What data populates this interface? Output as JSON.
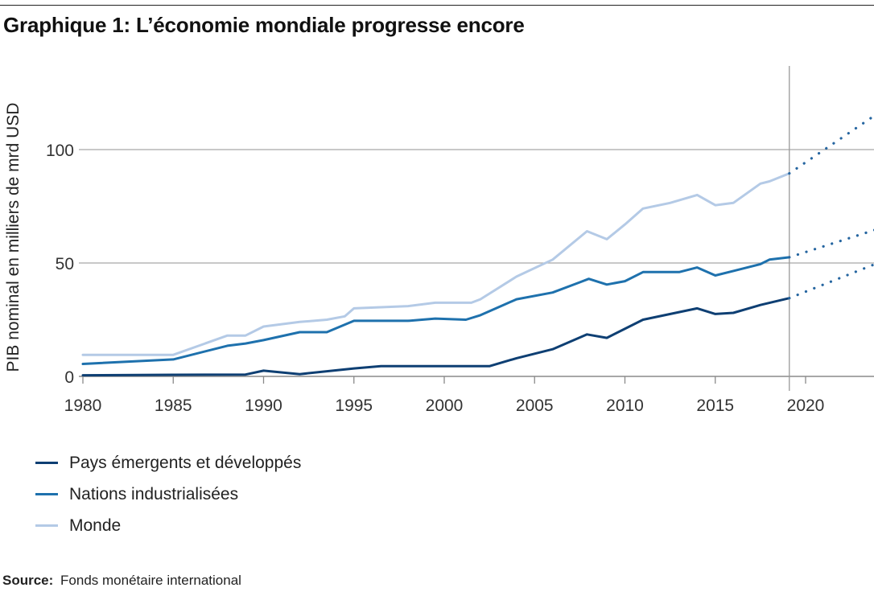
{
  "header": {
    "title": "Graphique 1: L’économie mondiale progresse encore"
  },
  "chart_data": {
    "type": "line",
    "title": "Graphique 1: L’économie mondiale progresse encore",
    "ylabel": "PIB nominal en milliers de mrd USD",
    "xlabel": "",
    "xlim": [
      1980,
      2024
    ],
    "ylim": [
      0,
      120
    ],
    "x_ticks": [
      1980,
      1985,
      1990,
      1995,
      2000,
      2005,
      2010,
      2015,
      2020
    ],
    "y_ticks": [
      0,
      50,
      100
    ],
    "y_tick_labels": [
      "0",
      "50",
      "100"
    ],
    "x_tick_labels": [
      "1980",
      "1985",
      "1990",
      "1995",
      "2000",
      "2005",
      "2010",
      "2015",
      "2020"
    ],
    "grid": "horizontal",
    "forecast_divider_x": 2019.1,
    "legend_position": "bottom-left",
    "series": [
      {
        "name": "Pays émergents et développés",
        "color": "#0e3f73",
        "points": [
          [
            1980,
            0.5
          ],
          [
            1985,
            0.7
          ],
          [
            1989,
            0.8
          ],
          [
            1990,
            2.5
          ],
          [
            1992,
            1.0
          ],
          [
            1995,
            3.5
          ],
          [
            1996.5,
            4.5
          ],
          [
            2002.5,
            4.5
          ],
          [
            2004,
            8
          ],
          [
            2006,
            12
          ],
          [
            2007.9,
            18.5
          ],
          [
            2009,
            17
          ],
          [
            2011,
            25
          ],
          [
            2014,
            30
          ],
          [
            2015,
            27.5
          ],
          [
            2016,
            28
          ],
          [
            2017.5,
            31.5
          ],
          [
            2019.1,
            34.5
          ]
        ],
        "forecast": [
          [
            2019.1,
            34.5
          ],
          [
            2024,
            50
          ]
        ]
      },
      {
        "name": "Nations industrialisées",
        "color": "#1e71ad",
        "points": [
          [
            1980,
            5.5
          ],
          [
            1985,
            7.5
          ],
          [
            1988,
            13.5
          ],
          [
            1989,
            14.5
          ],
          [
            1990,
            16
          ],
          [
            1992,
            19.5
          ],
          [
            1993.5,
            19.5
          ],
          [
            1995,
            24.5
          ],
          [
            1998,
            24.5
          ],
          [
            1999.5,
            25.5
          ],
          [
            2001.2,
            25
          ],
          [
            2002,
            27
          ],
          [
            2004,
            34
          ],
          [
            2006,
            37
          ],
          [
            2007.5,
            41.5
          ],
          [
            2008,
            43
          ],
          [
            2009,
            40.5
          ],
          [
            2010,
            42
          ],
          [
            2011,
            46
          ],
          [
            2013,
            46
          ],
          [
            2014,
            48
          ],
          [
            2015,
            44.5
          ],
          [
            2016,
            46.5
          ],
          [
            2017.5,
            49.5
          ],
          [
            2018,
            51.5
          ],
          [
            2019.1,
            52.5
          ]
        ],
        "forecast": [
          [
            2019.1,
            52.5
          ],
          [
            2024,
            65
          ]
        ]
      },
      {
        "name": "Monde",
        "color": "#b4cae6",
        "points": [
          [
            1980,
            9.5
          ],
          [
            1985,
            9.5
          ],
          [
            1988,
            18
          ],
          [
            1989,
            18
          ],
          [
            1990,
            22
          ],
          [
            1992,
            24
          ],
          [
            1993.5,
            25
          ],
          [
            1994.5,
            26.5
          ],
          [
            1995,
            30
          ],
          [
            1998,
            31
          ],
          [
            1999.5,
            32.5
          ],
          [
            2001.5,
            32.5
          ],
          [
            2002,
            34
          ],
          [
            2004,
            44
          ],
          [
            2006,
            51.5
          ],
          [
            2007.9,
            64
          ],
          [
            2009,
            60.5
          ],
          [
            2010,
            67
          ],
          [
            2011,
            74
          ],
          [
            2012.5,
            76.5
          ],
          [
            2014,
            80
          ],
          [
            2015,
            75.5
          ],
          [
            2016,
            76.5
          ],
          [
            2017.5,
            85
          ],
          [
            2018,
            86
          ],
          [
            2019.1,
            89.5
          ]
        ],
        "forecast": [
          [
            2019.1,
            89.5
          ],
          [
            2024,
            116
          ]
        ]
      }
    ]
  },
  "legend": {
    "items": [
      {
        "label": "Pays émergents et développés",
        "color": "#0e3f73"
      },
      {
        "label": "Nations industrialisées",
        "color": "#1e71ad"
      },
      {
        "label": "Monde",
        "color": "#b4cae6"
      }
    ]
  },
  "footer": {
    "source_label": "Source:",
    "source_text": "Fonds monétaire international"
  }
}
